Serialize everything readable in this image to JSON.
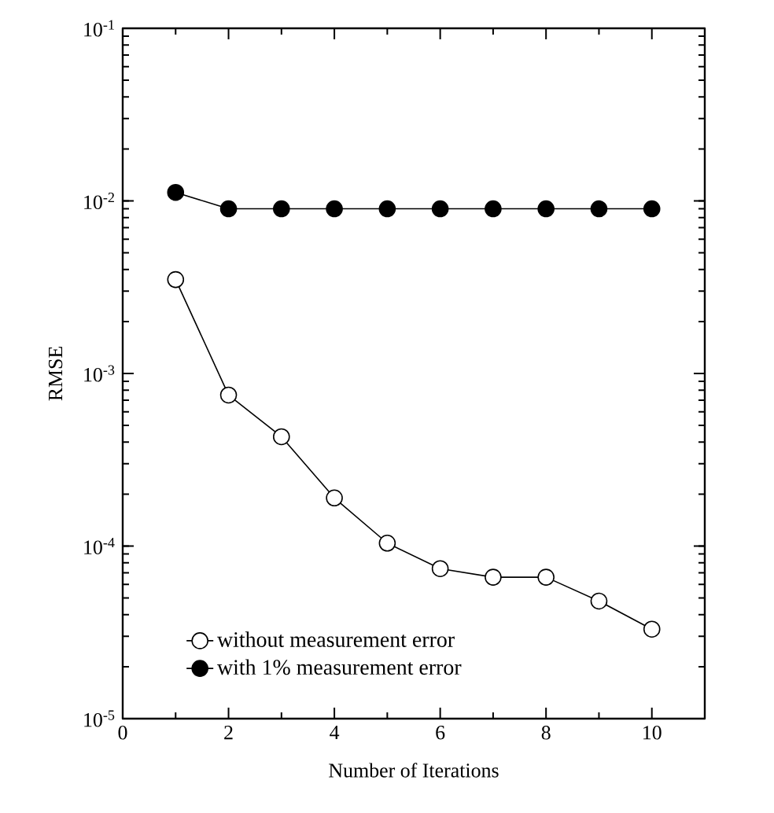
{
  "chart_data": {
    "type": "line",
    "xlabel": "Number of Iterations",
    "ylabel": "RMSE",
    "x": [
      1,
      2,
      3,
      4,
      5,
      6,
      7,
      8,
      9,
      10
    ],
    "series": [
      {
        "name": "without measurement error",
        "color": "#000000",
        "values": [
          0.0035,
          0.00075,
          0.00043,
          0.00019,
          0.000104,
          7.4e-05,
          6.6e-05,
          6.6e-05,
          4.8e-05,
          3.3e-05
        ]
      },
      {
        "name": "with 1% measurement error",
        "color": "#000000",
        "values": [
          0.0112,
          0.009,
          0.009,
          0.009,
          0.009,
          0.009,
          0.009,
          0.009,
          0.009,
          0.009
        ]
      }
    ],
    "xlim": [
      0,
      11
    ],
    "xticks": [
      0,
      2,
      4,
      6,
      8,
      10
    ],
    "ylim": [
      1e-05,
      0.1
    ],
    "yticks": [
      {
        "value": 1e-05,
        "label": "10$^{-5}$"
      },
      {
        "value": 0.0001,
        "label": "10$^{-4}$"
      },
      {
        "value": 0.001,
        "label": "10$^{-3}$"
      },
      {
        "value": 0.01,
        "label": "10$^{-2}$"
      },
      {
        "value": 0.1,
        "label": "10$^{-1}$"
      }
    ],
    "log": "y",
    "legend": "bottom left",
    "marker": "circle",
    "line_style": "solid",
    "grid": false
  }
}
